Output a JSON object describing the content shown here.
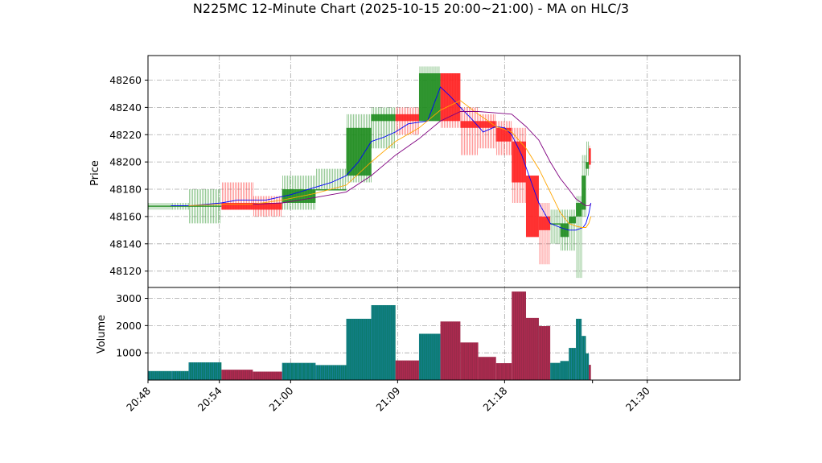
{
  "chart_data": {
    "type": "candlestick",
    "title": "N225MC 12-Minute Chart (2025-10-15 20:00~21:00) - MA on HLC/3",
    "price_panel": {
      "ylabel": "Price",
      "ylim": [
        48108,
        48278
      ],
      "yticks": [
        48120,
        48140,
        48160,
        48180,
        48200,
        48220,
        48240,
        48260
      ]
    },
    "volume_panel": {
      "ylabel": "Volume",
      "ylim": [
        0,
        3400
      ],
      "yticks": [
        1000,
        2000,
        3000
      ]
    },
    "x_axis": {
      "xlim": [
        20.8,
        21.63
      ],
      "ticks": [
        {
          "value": 20.8,
          "label": "20:48"
        },
        {
          "value": 20.9,
          "label": "20:54"
        },
        {
          "value": 21.0,
          "label": "21:00"
        },
        {
          "value": 21.15,
          "label": "21:09"
        },
        {
          "value": 21.3,
          "label": "21:18"
        },
        {
          "value": 21.5,
          "label": "21:30"
        }
      ]
    },
    "grid": true,
    "candles": [
      {
        "t0": 20.8,
        "t1": 20.833,
        "open": 48168,
        "high": 48170,
        "low": 48165,
        "close": 48168,
        "volume": 330
      },
      {
        "t0": 20.833,
        "t1": 20.857,
        "open": 48168,
        "high": 48170,
        "low": 48165,
        "close": 48168,
        "volume": 330
      },
      {
        "t0": 20.857,
        "t1": 20.903,
        "open": 48168,
        "high": 48180,
        "low": 48155,
        "close": 48168,
        "volume": 650
      },
      {
        "t0": 20.903,
        "t1": 20.947,
        "open": 48170,
        "high": 48185,
        "low": 48165,
        "close": 48165,
        "volume": 380
      },
      {
        "t0": 20.947,
        "t1": 20.988,
        "open": 48170,
        "high": 48175,
        "low": 48160,
        "close": 48165,
        "volume": 310
      },
      {
        "t0": 20.988,
        "t1": 21.035,
        "open": 48170,
        "high": 48190,
        "low": 48165,
        "close": 48180,
        "volume": 630
      },
      {
        "t0": 21.035,
        "t1": 21.078,
        "open": 48180,
        "high": 48195,
        "low": 48180,
        "close": 48180,
        "volume": 550
      },
      {
        "t0": 21.078,
        "t1": 21.113,
        "open": 48190,
        "high": 48235,
        "low": 48185,
        "close": 48225,
        "volume": 2250
      },
      {
        "t0": 21.113,
        "t1": 21.147,
        "open": 48230,
        "high": 48240,
        "low": 48210,
        "close": 48235,
        "volume": 2750
      },
      {
        "t0": 21.147,
        "t1": 21.18,
        "open": 48235,
        "high": 48240,
        "low": 48220,
        "close": 48230,
        "volume": 720
      },
      {
        "t0": 21.18,
        "t1": 21.21,
        "open": 48230,
        "high": 48270,
        "low": 48230,
        "close": 48265,
        "volume": 1700
      },
      {
        "t0": 21.21,
        "t1": 21.238,
        "open": 48265,
        "high": 48265,
        "low": 48225,
        "close": 48230,
        "volume": 2150
      },
      {
        "t0": 21.238,
        "t1": 21.263,
        "open": 48230,
        "high": 48240,
        "low": 48205,
        "close": 48225,
        "volume": 1380
      },
      {
        "t0": 21.263,
        "t1": 21.288,
        "open": 48230,
        "high": 48235,
        "low": 48210,
        "close": 48225,
        "volume": 850
      },
      {
        "t0": 21.288,
        "t1": 21.31,
        "open": 48225,
        "high": 48230,
        "low": 48205,
        "close": 48215,
        "volume": 620
      },
      {
        "t0": 21.31,
        "t1": 21.33,
        "open": 48215,
        "high": 48225,
        "low": 48170,
        "close": 48185,
        "volume": 3250
      },
      {
        "t0": 21.33,
        "t1": 21.348,
        "open": 48190,
        "high": 48190,
        "low": 48145,
        "close": 48145,
        "volume": 2280
      },
      {
        "t0": 21.348,
        "t1": 21.364,
        "open": 48160,
        "high": 48170,
        "low": 48125,
        "close": 48150,
        "volume": 1980
      },
      {
        "t0": 21.364,
        "t1": 21.378,
        "open": 48155,
        "high": 48165,
        "low": 48140,
        "close": 48155,
        "volume": 630
      },
      {
        "t0": 21.378,
        "t1": 21.39,
        "open": 48145,
        "high": 48165,
        "low": 48135,
        "close": 48155,
        "volume": 700
      },
      {
        "t0": 21.39,
        "t1": 21.4,
        "open": 48155,
        "high": 48165,
        "low": 48135,
        "close": 48160,
        "volume": 1180
      },
      {
        "t0": 21.4,
        "t1": 21.408,
        "open": 48160,
        "high": 48175,
        "low": 48115,
        "close": 48170,
        "volume": 2250
      },
      {
        "t0": 21.408,
        "t1": 21.414,
        "open": 48165,
        "high": 48205,
        "low": 48160,
        "close": 48190,
        "volume": 1620
      },
      {
        "t0": 21.414,
        "t1": 21.418,
        "open": 48195,
        "high": 48215,
        "low": 48190,
        "close": 48200,
        "volume": 980
      },
      {
        "t0": 21.418,
        "t1": 21.421,
        "open": 48210,
        "high": 48212,
        "low": 48195,
        "close": 48198,
        "volume": 560
      }
    ],
    "ma_lines": [
      {
        "color": "#0000ff",
        "points": [
          [
            20.832,
            48168
          ],
          [
            20.861,
            48168
          ],
          [
            20.903,
            48170
          ],
          [
            20.925,
            48172
          ],
          [
            20.965,
            48172
          ],
          [
            21.0,
            48176
          ],
          [
            21.057,
            48185
          ],
          [
            21.078,
            48190
          ],
          [
            21.095,
            48200
          ],
          [
            21.113,
            48215
          ],
          [
            21.13,
            48218
          ],
          [
            21.147,
            48222
          ],
          [
            21.165,
            48228
          ],
          [
            21.192,
            48230
          ],
          [
            21.21,
            48255
          ],
          [
            21.224,
            48248
          ],
          [
            21.238,
            48240
          ],
          [
            21.253,
            48232
          ],
          [
            21.27,
            48222
          ],
          [
            21.288,
            48226
          ],
          [
            21.3,
            48225
          ],
          [
            21.31,
            48220
          ],
          [
            21.324,
            48205
          ],
          [
            21.341,
            48180
          ],
          [
            21.348,
            48170
          ],
          [
            21.364,
            48155
          ],
          [
            21.378,
            48152
          ],
          [
            21.39,
            48150
          ],
          [
            21.4,
            48150
          ],
          [
            21.41,
            48152
          ],
          [
            21.414,
            48155
          ],
          [
            21.418,
            48162
          ],
          [
            21.421,
            48170
          ]
        ]
      },
      {
        "color": "#ffa500",
        "points": [
          [
            20.857,
            48168
          ],
          [
            20.903,
            48169
          ],
          [
            20.947,
            48169
          ],
          [
            20.988,
            48172
          ],
          [
            21.035,
            48177
          ],
          [
            21.078,
            48183
          ],
          [
            21.113,
            48200
          ],
          [
            21.147,
            48215
          ],
          [
            21.18,
            48225
          ],
          [
            21.21,
            48238
          ],
          [
            21.238,
            48245
          ],
          [
            21.263,
            48235
          ],
          [
            21.288,
            48226
          ],
          [
            21.31,
            48222
          ],
          [
            21.33,
            48210
          ],
          [
            21.348,
            48195
          ],
          [
            21.364,
            48178
          ],
          [
            21.378,
            48163
          ],
          [
            21.39,
            48155
          ],
          [
            21.4,
            48153
          ],
          [
            21.408,
            48152
          ],
          [
            21.414,
            48152
          ],
          [
            21.418,
            48155
          ],
          [
            21.421,
            48160
          ]
        ]
      },
      {
        "color": "#800080",
        "points": [
          [
            20.947,
            48169
          ],
          [
            20.988,
            48170
          ],
          [
            21.035,
            48174
          ],
          [
            21.078,
            48178
          ],
          [
            21.113,
            48190
          ],
          [
            21.147,
            48205
          ],
          [
            21.18,
            48217
          ],
          [
            21.21,
            48230
          ],
          [
            21.238,
            48237
          ],
          [
            21.263,
            48237
          ],
          [
            21.288,
            48236
          ],
          [
            21.31,
            48235
          ],
          [
            21.33,
            48226
          ],
          [
            21.348,
            48216
          ],
          [
            21.364,
            48200
          ],
          [
            21.378,
            48188
          ],
          [
            21.39,
            48180
          ],
          [
            21.4,
            48173
          ],
          [
            21.408,
            48170
          ],
          [
            21.414,
            48168
          ],
          [
            21.418,
            48168
          ],
          [
            21.421,
            48169
          ]
        ]
      }
    ]
  }
}
